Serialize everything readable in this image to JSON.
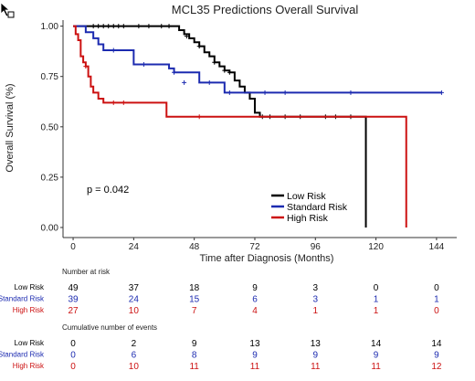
{
  "chart_data": {
    "type": "line",
    "title": "MCL35 Predictions Overall Survival",
    "xlabel": "Time after Diagnosis (Months)",
    "ylabel": "Overall Survival (%)",
    "xlim": [
      -4,
      152
    ],
    "ylim": [
      -0.05,
      1.03
    ],
    "xticks": [
      0,
      24,
      48,
      72,
      96,
      120,
      144
    ],
    "yticks": [
      0.0,
      0.25,
      0.5,
      0.75,
      1.0
    ],
    "ytick_labels": [
      "0.00",
      "0.25",
      "0.50",
      "0.75",
      "1.00"
    ],
    "grid": false,
    "legend_position": "bottom-right",
    "p_value": "p = 0.042",
    "series": [
      {
        "name": "Low Risk",
        "color": "#000000",
        "steps": [
          [
            0,
            1.0
          ],
          [
            40,
            1.0
          ],
          [
            42,
            0.98
          ],
          [
            44,
            0.96
          ],
          [
            46,
            0.94
          ],
          [
            48,
            0.92
          ],
          [
            50,
            0.9
          ],
          [
            52,
            0.87
          ],
          [
            54,
            0.85
          ],
          [
            56,
            0.82
          ],
          [
            58,
            0.8
          ],
          [
            60,
            0.78
          ],
          [
            62,
            0.77
          ],
          [
            64,
            0.73
          ],
          [
            66,
            0.7
          ],
          [
            68,
            0.67
          ],
          [
            70,
            0.64
          ],
          [
            72,
            0.57
          ],
          [
            74,
            0.55
          ],
          [
            116,
            0.55
          ],
          [
            116,
            0.0
          ]
        ],
        "censor": [
          [
            8,
            1.0
          ],
          [
            10,
            1.0
          ],
          [
            12,
            1.0
          ],
          [
            14,
            1.0
          ],
          [
            16,
            1.0
          ],
          [
            18,
            1.0
          ],
          [
            20,
            1.0
          ],
          [
            26,
            1.0
          ],
          [
            30,
            1.0
          ],
          [
            35,
            1.0
          ],
          [
            38,
            1.0
          ],
          [
            45,
            0.95
          ],
          [
            50,
            0.9
          ],
          [
            56,
            0.82
          ],
          [
            60,
            0.78
          ],
          [
            62,
            0.77
          ],
          [
            75,
            0.55
          ],
          [
            78,
            0.55
          ],
          [
            84,
            0.55
          ],
          [
            90,
            0.55
          ],
          [
            100,
            0.55
          ],
          [
            104,
            0.55
          ],
          [
            110,
            0.55
          ]
        ]
      },
      {
        "name": "Standard Risk",
        "color": "#1c2bb0",
        "steps": [
          [
            0,
            1.0
          ],
          [
            4,
            1.0
          ],
          [
            5,
            0.97
          ],
          [
            8,
            0.94
          ],
          [
            10,
            0.91
          ],
          [
            12,
            0.88
          ],
          [
            22,
            0.88
          ],
          [
            24,
            0.81
          ],
          [
            36,
            0.81
          ],
          [
            38,
            0.79
          ],
          [
            40,
            0.77
          ],
          [
            48,
            0.77
          ],
          [
            50,
            0.72
          ],
          [
            58,
            0.72
          ],
          [
            60,
            0.67
          ],
          [
            146,
            0.67
          ]
        ],
        "censor": [
          [
            16,
            0.88
          ],
          [
            28,
            0.81
          ],
          [
            40,
            0.77
          ],
          [
            44,
            0.72
          ],
          [
            54,
            0.72
          ],
          [
            62,
            0.67
          ],
          [
            76,
            0.67
          ],
          [
            84,
            0.67
          ],
          [
            110,
            0.67
          ],
          [
            146,
            0.67
          ]
        ]
      },
      {
        "name": "High Risk",
        "color": "#cc1111",
        "steps": [
          [
            0,
            1.0
          ],
          [
            1,
            0.96
          ],
          [
            2,
            0.93
          ],
          [
            3,
            0.85
          ],
          [
            4,
            0.82
          ],
          [
            5,
            0.8
          ],
          [
            6,
            0.75
          ],
          [
            7,
            0.7
          ],
          [
            8,
            0.67
          ],
          [
            10,
            0.64
          ],
          [
            12,
            0.62
          ],
          [
            36,
            0.62
          ],
          [
            37,
            0.55
          ],
          [
            132,
            0.55
          ],
          [
            132,
            0.0
          ]
        ],
        "censor": [
          [
            5,
            0.8
          ],
          [
            16,
            0.62
          ],
          [
            20,
            0.62
          ],
          [
            50,
            0.55
          ]
        ]
      }
    ],
    "risk_table": {
      "title": "Number at risk",
      "times": [
        0,
        24,
        48,
        72,
        96,
        120,
        144
      ],
      "rows": [
        {
          "label": "Low Risk",
          "color": "#000000",
          "values": [
            "49",
            "37",
            "18",
            "9",
            "3",
            "0",
            "0"
          ]
        },
        {
          "label": "Standard Risk",
          "color": "#1c2bb0",
          "values": [
            "39",
            "24",
            "15",
            "6",
            "3",
            "1",
            "1"
          ]
        },
        {
          "label": "High Risk",
          "color": "#cc1111",
          "values": [
            "27",
            "10",
            "7",
            "4",
            "1",
            "1",
            "0"
          ]
        }
      ]
    },
    "events_table": {
      "title": "Cumulative number of events",
      "times": [
        0,
        24,
        48,
        72,
        96,
        120,
        144
      ],
      "rows": [
        {
          "label": "Low Risk",
          "color": "#000000",
          "values": [
            "0",
            "2",
            "9",
            "13",
            "13",
            "14",
            "14"
          ]
        },
        {
          "label": "Standard Risk",
          "color": "#1c2bb0",
          "values": [
            "0",
            "6",
            "8",
            "9",
            "9",
            "9",
            "9"
          ]
        },
        {
          "label": "High Risk",
          "color": "#cc1111",
          "values": [
            "0",
            "10",
            "11",
            "11",
            "11",
            "11",
            "12"
          ]
        }
      ]
    }
  }
}
